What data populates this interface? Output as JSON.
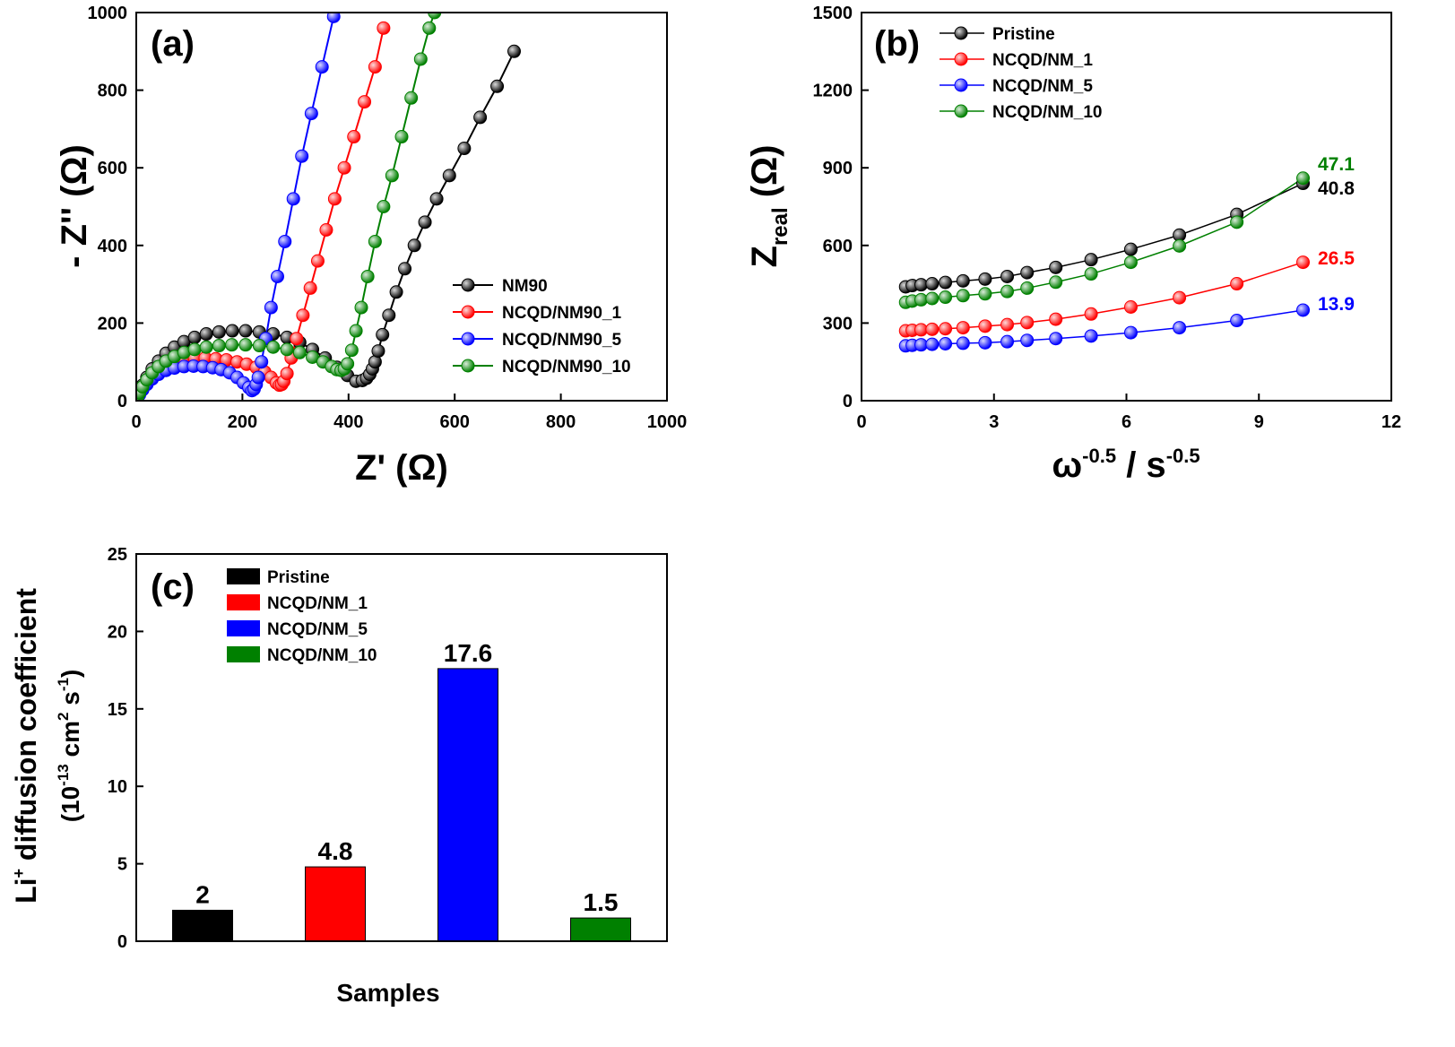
{
  "chart_data": [
    {
      "type": "scatter",
      "panel_label": "(a)",
      "xlabel": "Z' (Ω)",
      "ylabel": "- Z'' (Ω)",
      "xlim": [
        0,
        1000
      ],
      "ylim": [
        0,
        1000
      ],
      "xticks": [
        0,
        200,
        400,
        600,
        800,
        1000
      ],
      "yticks": [
        0,
        200,
        400,
        600,
        800,
        1000
      ],
      "legend_position": "lower-right",
      "series": [
        {
          "name": "NM90",
          "color": "#000000",
          "x": [
            2,
            6,
            12,
            20,
            30,
            42,
            56,
            72,
            90,
            110,
            132,
            156,
            181,
            206,
            232,
            258,
            284,
            308,
            332,
            356,
            378,
            398,
            414,
            426,
            434,
            440,
            445,
            450,
            456,
            464,
            476,
            490,
            506,
            524,
            544,
            566,
            590,
            618,
            648,
            680,
            712
          ],
          "y": [
            8,
            22,
            40,
            60,
            82,
            102,
            122,
            138,
            152,
            163,
            172,
            177,
            180,
            180,
            177,
            172,
            163,
            150,
            132,
            110,
            86,
            65,
            50,
            52,
            58,
            68,
            82,
            100,
            128,
            170,
            220,
            280,
            340,
            400,
            460,
            520,
            580,
            650,
            730,
            810,
            900
          ]
        },
        {
          "name": "NCQD/NM90_1",
          "color": "#ff0000",
          "x": [
            2,
            6,
            12,
            20,
            30,
            42,
            56,
            72,
            90,
            110,
            130,
            150,
            170,
            190,
            208,
            226,
            242,
            254,
            264,
            270,
            274,
            278,
            284,
            292,
            302,
            314,
            328,
            342,
            358,
            374,
            392,
            410,
            430,
            450,
            466
          ],
          "y": [
            6,
            18,
            32,
            48,
            64,
            80,
            92,
            102,
            108,
            110,
            110,
            108,
            105,
            100,
            94,
            86,
            74,
            60,
            46,
            40,
            42,
            50,
            70,
            110,
            160,
            220,
            290,
            360,
            440,
            520,
            600,
            680,
            770,
            860,
            960
          ]
        },
        {
          "name": "NCQD/NM90_5",
          "color": "#0000ff",
          "x": [
            2,
            6,
            12,
            20,
            30,
            42,
            56,
            72,
            90,
            108,
            126,
            144,
            160,
            176,
            190,
            202,
            212,
            218,
            222,
            226,
            230,
            236,
            244,
            254,
            266,
            280,
            296,
            312,
            330,
            350,
            372
          ],
          "y": [
            5,
            15,
            28,
            42,
            56,
            68,
            78,
            84,
            88,
            89,
            88,
            85,
            80,
            72,
            60,
            46,
            34,
            26,
            30,
            42,
            60,
            100,
            160,
            240,
            320,
            410,
            520,
            630,
            740,
            860,
            990
          ]
        },
        {
          "name": "NCQD/NM90_10",
          "color": "#008000",
          "x": [
            2,
            6,
            12,
            20,
            30,
            42,
            56,
            72,
            90,
            110,
            132,
            156,
            180,
            206,
            232,
            258,
            284,
            308,
            332,
            352,
            368,
            378,
            386,
            392,
            398,
            406,
            414,
            424,
            436,
            450,
            466,
            482,
            500,
            518,
            536,
            552,
            562
          ],
          "y": [
            7,
            20,
            36,
            54,
            72,
            88,
            102,
            114,
            124,
            132,
            138,
            142,
            144,
            144,
            142,
            138,
            132,
            124,
            112,
            100,
            88,
            80,
            78,
            82,
            95,
            130,
            180,
            240,
            320,
            410,
            500,
            580,
            680,
            780,
            880,
            960,
            1000
          ]
        }
      ]
    },
    {
      "type": "line",
      "panel_label": "(b)",
      "xlabel": "ω",
      "xlabel_sup": "-0.5",
      "xlabel_mid": " / s",
      "xlabel_sup2": "-0.5",
      "ylabel": "Z",
      "ylabel_sub": "real",
      "ylabel_unit": " (Ω)",
      "xlim": [
        0,
        12
      ],
      "ylim": [
        0,
        1500
      ],
      "xticks": [
        0,
        3,
        6,
        9,
        12
      ],
      "yticks": [
        0,
        300,
        600,
        900,
        1200,
        1500
      ],
      "legend_position": "top-left",
      "x": [
        1.0,
        1.15,
        1.35,
        1.6,
        1.9,
        2.3,
        2.8,
        3.3,
        3.75,
        4.4,
        5.2,
        6.1,
        7.2,
        8.5,
        10.0
      ],
      "series": [
        {
          "name": "Pristine",
          "color": "#000000",
          "end_label": "40.8",
          "values": [
            440,
            445,
            448,
            452,
            457,
            463,
            470,
            480,
            495,
            515,
            545,
            585,
            640,
            720,
            840
          ]
        },
        {
          "name": "NCQD/NM_1",
          "color": "#ff0000",
          "end_label": "26.5",
          "values": [
            270,
            272,
            274,
            276,
            278,
            282,
            288,
            294,
            302,
            315,
            335,
            362,
            398,
            452,
            535
          ]
        },
        {
          "name": "NCQD/NM_5",
          "color": "#0000ff",
          "end_label": "13.9",
          "values": [
            212,
            214,
            216,
            218,
            220,
            222,
            224,
            228,
            233,
            240,
            250,
            263,
            282,
            310,
            350
          ]
        },
        {
          "name": "NCQD/NM_10",
          "color": "#008000",
          "end_label": "47.1",
          "values": [
            380,
            385,
            390,
            395,
            400,
            406,
            413,
            422,
            435,
            458,
            490,
            535,
            598,
            690,
            860
          ]
        }
      ]
    },
    {
      "type": "bar",
      "panel_label": "(c)",
      "xlabel": "Samples",
      "ylabel": "Li",
      "ylabel_sup": "+",
      "ylabel_rest": " diffusion coefficient",
      "ylabel2": "(10",
      "ylabel2_sup": "-13",
      "ylabel2_mid": " cm",
      "ylabel2_sup2": "2",
      "ylabel2_mid2": " s",
      "ylabel2_sup3": "-1",
      "ylabel2_end": ")",
      "ylim": [
        0,
        25
      ],
      "yticks": [
        0,
        5,
        10,
        15,
        20,
        25
      ],
      "legend_position": "top-left",
      "categories": [
        "Pristine",
        "NCQD/NM_1",
        "NCQD/NM_5",
        "NCQD/NM_10"
      ],
      "colors": [
        "#000000",
        "#ff0000",
        "#0000ff",
        "#008000"
      ],
      "values": [
        2,
        4.8,
        17.6,
        1.5
      ],
      "value_labels": [
        "2",
        "4.8",
        "17.6",
        "1.5"
      ]
    }
  ]
}
